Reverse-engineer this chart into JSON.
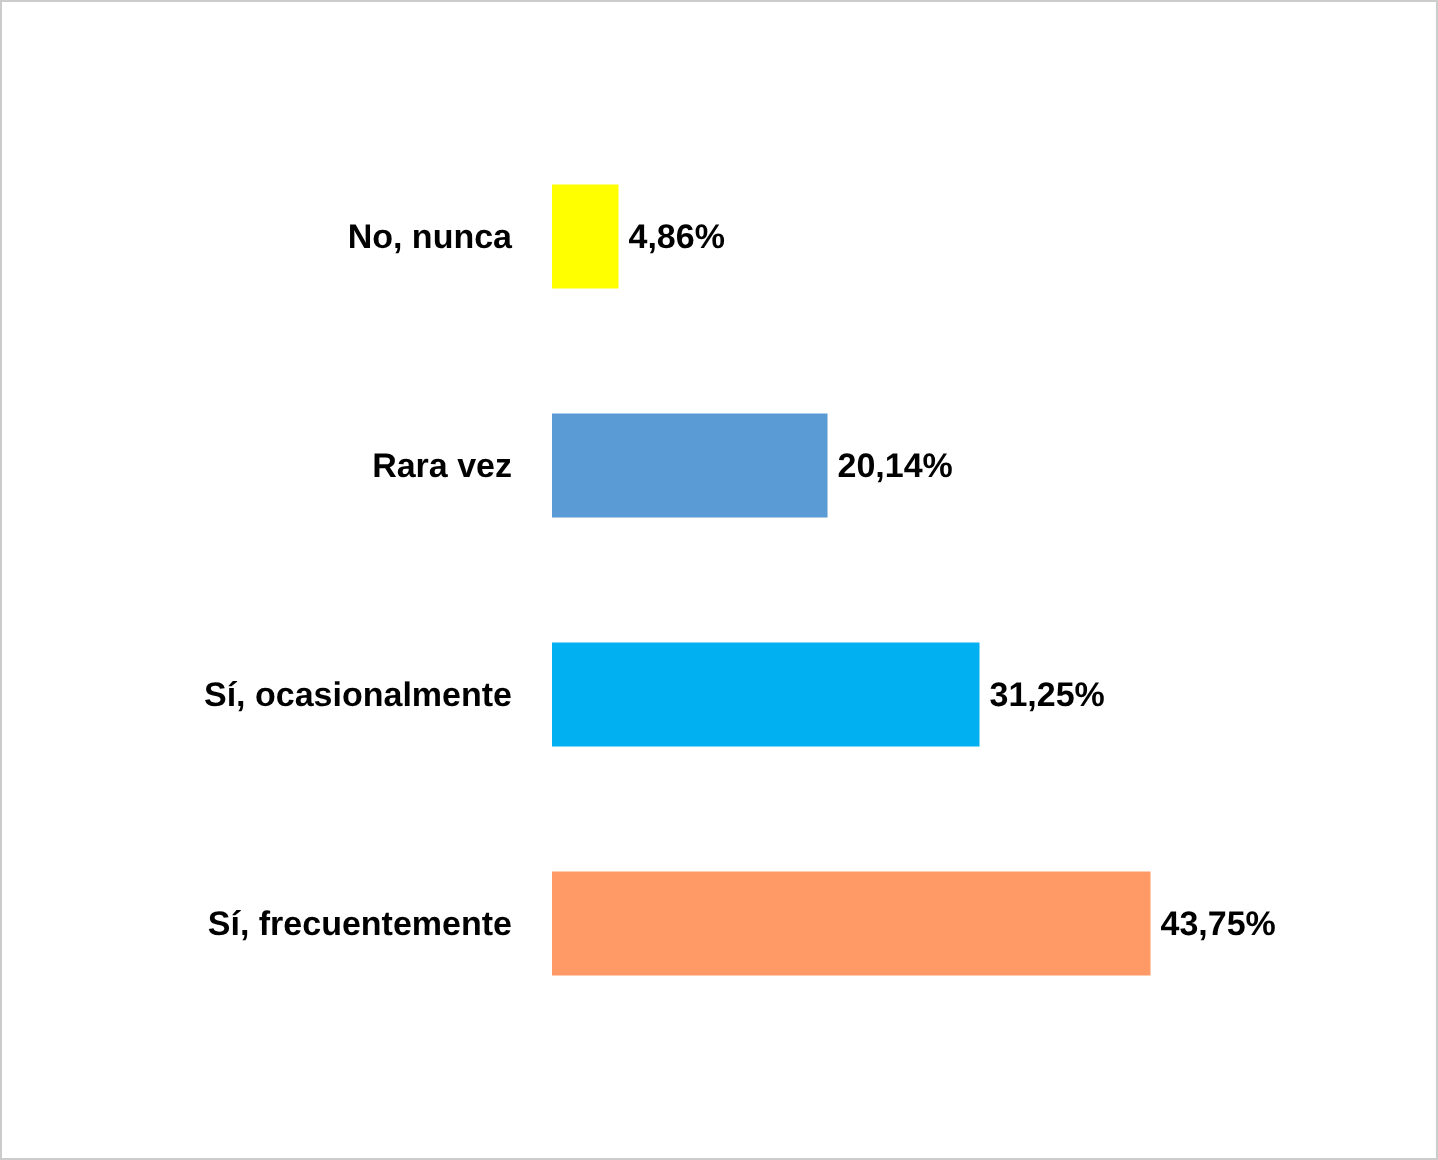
{
  "chart_data": {
    "type": "bar",
    "orientation": "horizontal",
    "categories": [
      "No, nunca",
      "Rara vez",
      "Sí, ocasionalmente",
      "Sí, frecuentemente"
    ],
    "values": [
      4.86,
      20.14,
      31.25,
      43.75
    ],
    "colors": [
      "#ffff00",
      "#5b9bd5",
      "#00b0f0",
      "#ff9966"
    ],
    "value_labels": [
      "4,86%",
      "20,14%",
      "31,25%",
      "43,75%"
    ],
    "tick_labels": false
  }
}
